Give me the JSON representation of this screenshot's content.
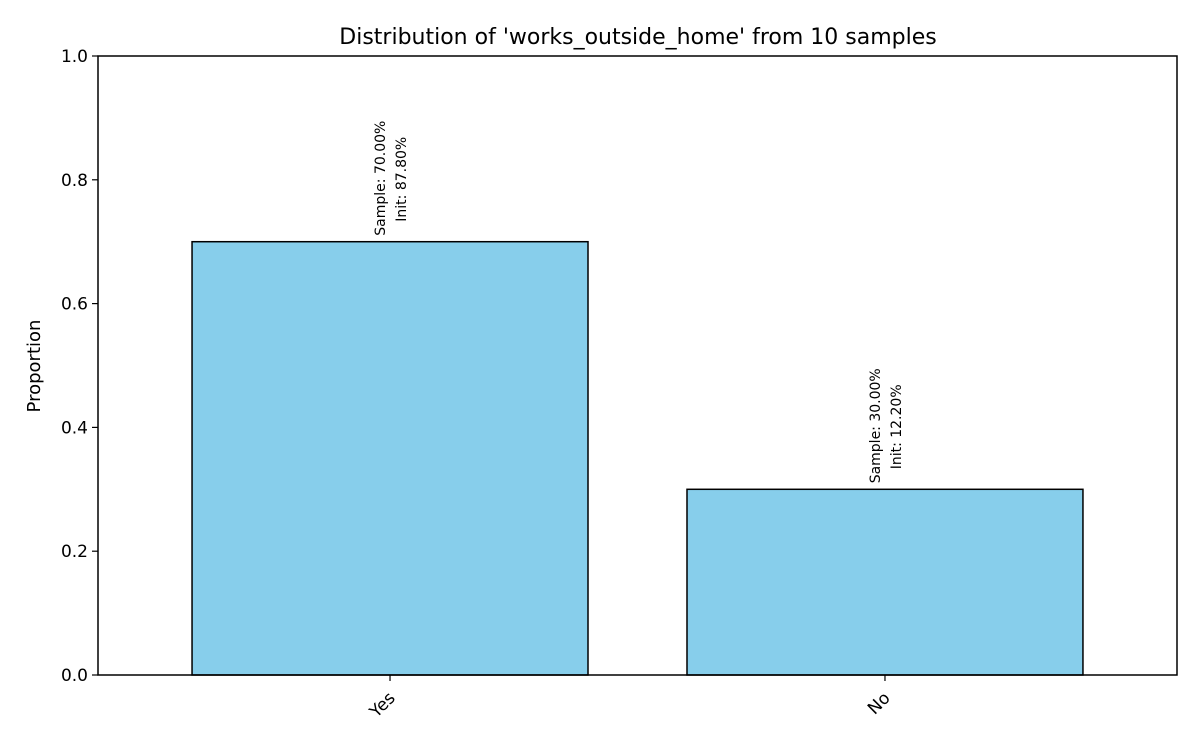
{
  "chart_data": {
    "type": "bar",
    "title": "Distribution of 'works_outside_home' from 10 samples",
    "xlabel": "",
    "ylabel": "Proportion",
    "ylim": [
      0,
      1.0
    ],
    "yticks": [
      "0.0",
      "0.2",
      "0.4",
      "0.6",
      "0.8",
      "1.0"
    ],
    "categories": [
      "Yes",
      "No"
    ],
    "values": [
      0.7,
      0.3
    ],
    "annotations": [
      {
        "sample": "Sample: 70.00%",
        "init": "Init: 87.80%"
      },
      {
        "sample": "Sample: 30.00%",
        "init": "Init: 12.20%"
      }
    ],
    "grid": false,
    "legend": "none",
    "colors": {
      "bar_fill": "#87CEEB",
      "bar_edge": "#000000",
      "axis": "#000000"
    }
  }
}
